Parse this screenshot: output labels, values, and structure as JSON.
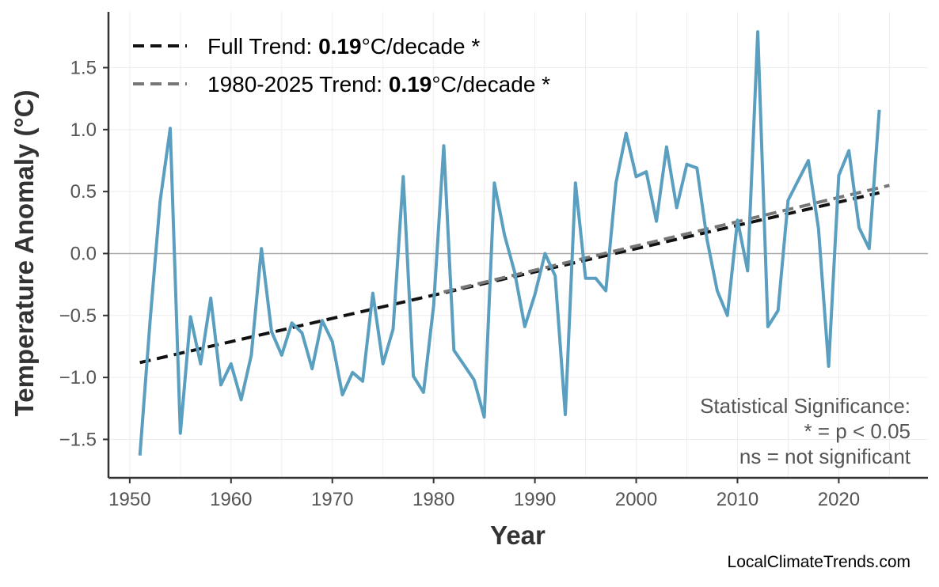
{
  "chart_data": {
    "type": "line",
    "xlabel": "Year",
    "ylabel": "Temperature Anomaly (°C)",
    "xlim": [
      1947.9,
      2028.8
    ],
    "ylim": [
      -1.81,
      1.95
    ],
    "grid": true,
    "x_ticks": [
      1950,
      1960,
      1970,
      1980,
      1990,
      2000,
      2010,
      2020
    ],
    "y_ticks": [
      -1.5,
      -1.0,
      -0.5,
      0.0,
      0.5,
      1.0,
      1.5
    ],
    "y_tick_labels": [
      "−1.5",
      "−1.0",
      "−0.5",
      "0.0",
      "0.5",
      "1.0",
      "1.5"
    ],
    "series_color": "#5A9FC0",
    "x": [
      1951,
      1952,
      1953,
      1954,
      1955,
      1956,
      1957,
      1958,
      1959,
      1960,
      1961,
      1962,
      1963,
      1964,
      1965,
      1966,
      1967,
      1968,
      1969,
      1970,
      1971,
      1972,
      1973,
      1974,
      1975,
      1976,
      1977,
      1978,
      1979,
      1980,
      1981,
      1982,
      1983,
      1984,
      1985,
      1986,
      1987,
      1988,
      1989,
      1990,
      1991,
      1992,
      1993,
      1994,
      1995,
      1996,
      1997,
      1998,
      1999,
      2000,
      2001,
      2002,
      2003,
      2004,
      2005,
      2006,
      2007,
      2008,
      2009,
      2010,
      2011,
      2012,
      2013,
      2014,
      2015,
      2016,
      2017,
      2018,
      2019,
      2020,
      2021,
      2022,
      2023,
      2024
    ],
    "values": [
      -1.63,
      -0.55,
      0.42,
      1.01,
      -1.45,
      -0.51,
      -0.89,
      -0.36,
      -1.06,
      -0.89,
      -1.18,
      -0.82,
      0.04,
      -0.63,
      -0.82,
      -0.56,
      -0.64,
      -0.93,
      -0.54,
      -0.71,
      -1.14,
      -0.96,
      -1.03,
      -0.32,
      -0.89,
      -0.61,
      0.62,
      -0.99,
      -1.12,
      -0.42,
      0.87,
      -0.78,
      -0.9,
      -1.02,
      -1.32,
      0.57,
      0.15,
      -0.15,
      -0.59,
      -0.33,
      0.0,
      -0.18,
      -1.3,
      0.57,
      -0.2,
      -0.2,
      -0.3,
      0.57,
      0.97,
      0.62,
      0.66,
      0.26,
      0.86,
      0.37,
      0.72,
      0.69,
      0.11,
      -0.3,
      -0.5,
      0.27,
      -0.14,
      1.79,
      -0.59,
      -0.46,
      0.43,
      0.59,
      0.75,
      0.2,
      -0.91,
      0.63,
      0.83,
      0.21,
      0.04,
      1.16
    ],
    "trends": [
      {
        "name": "Full Trend",
        "slope_label": "0.19",
        "unit": "°C/decade *",
        "x": [
          1951,
          2024
        ],
        "y": [
          -0.88,
          0.49
        ],
        "color": "#111111"
      },
      {
        "name": "1980-2025 Trend",
        "slope_label": "0.19",
        "unit": "°C/decade *",
        "x": [
          1981,
          2025
        ],
        "y": [
          -0.31,
          0.55
        ],
        "color": "#777777"
      }
    ],
    "legend_placement": "top-left",
    "annotation": [
      "Statistical Significance:",
      "* = p < 0.05",
      "ns = not significant"
    ],
    "credit": "LocalClimateTrends.com"
  }
}
